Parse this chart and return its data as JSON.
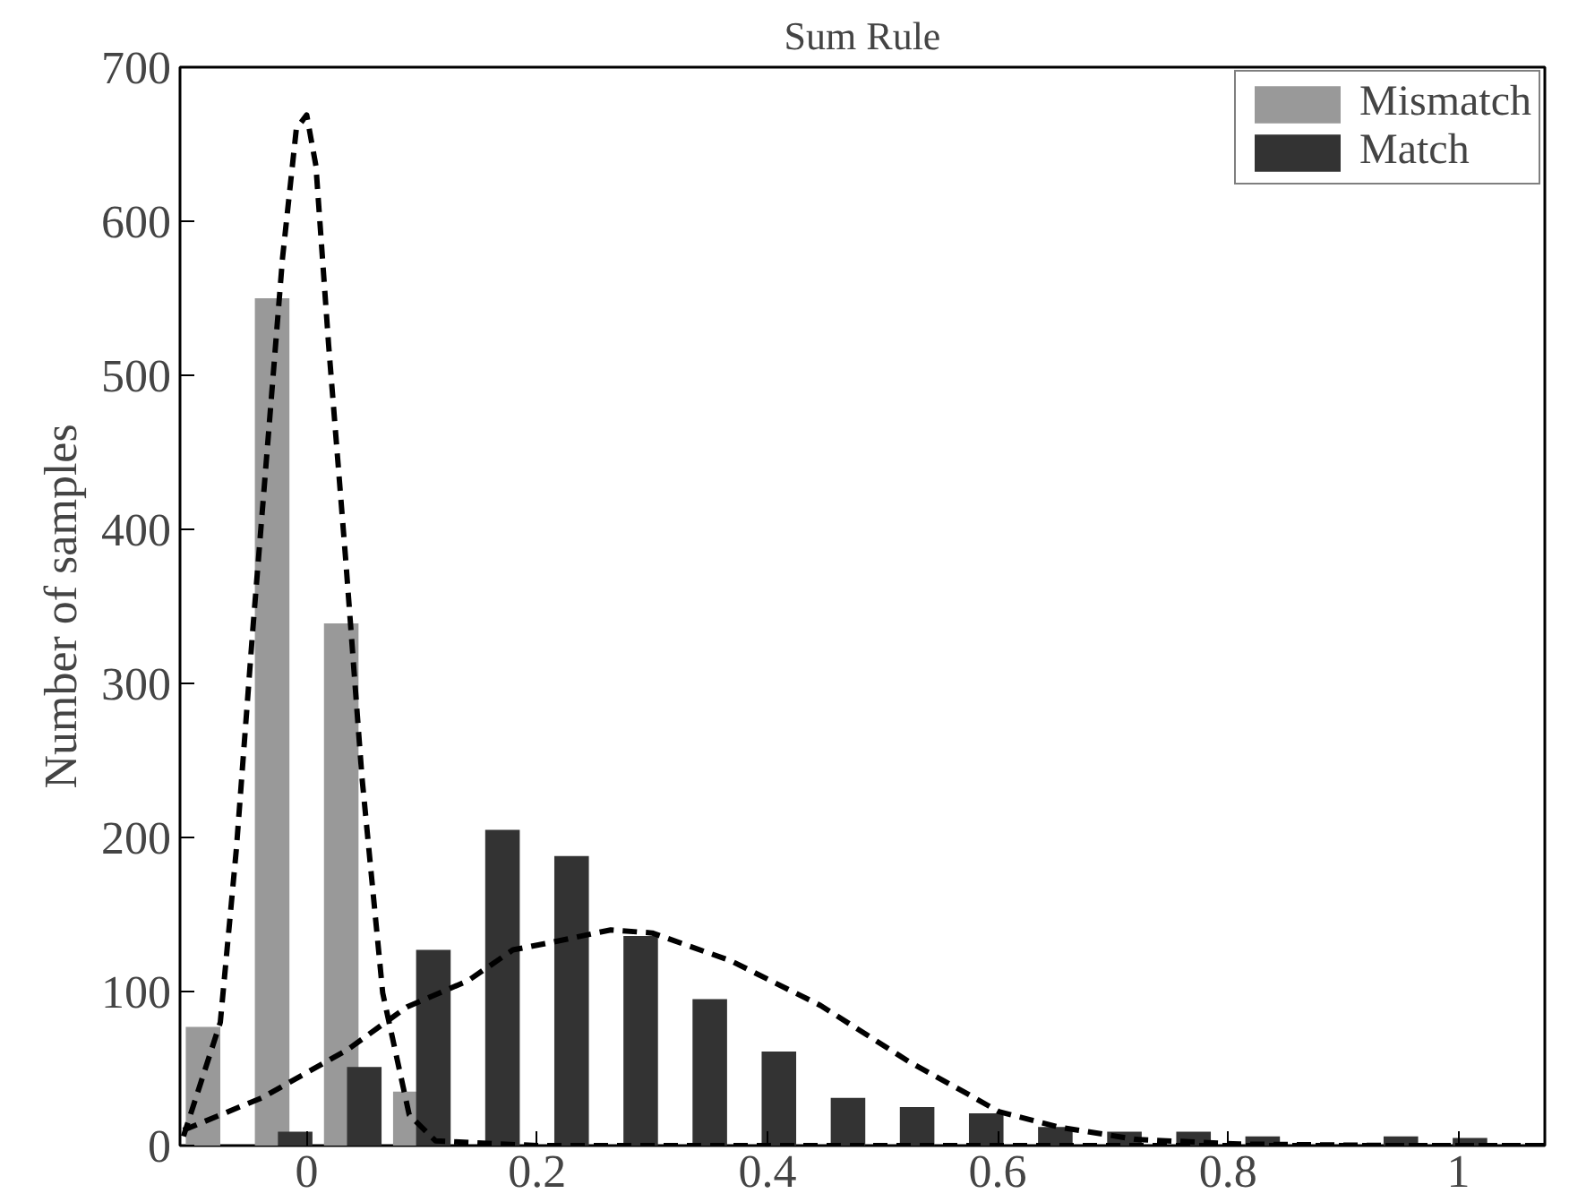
{
  "chart_data": {
    "type": "bar",
    "title": "Sum Rule",
    "ylabel": "Number of samples",
    "xlim": [
      -0.11,
      1.075
    ],
    "ylim": [
      0,
      700
    ],
    "xticks": [
      0,
      0.2,
      0.4,
      0.6,
      0.8,
      1
    ],
    "yticks": [
      0,
      100,
      200,
      300,
      400,
      500,
      600,
      700
    ],
    "grid": false,
    "legend": "top right",
    "series": [
      {
        "name": "Mismatch",
        "color": "#999999",
        "x": [
          -0.09,
          -0.03,
          0.03,
          0.09,
          0.15,
          0.21,
          0.27,
          0.33,
          0.39,
          0.45,
          0.51,
          0.57,
          0.63,
          0.69,
          0.75,
          0.81,
          0.87,
          0.93,
          0.99,
          1.05
        ],
        "values": [
          77,
          550,
          339,
          35,
          0,
          0,
          0,
          0,
          0,
          0,
          0,
          0,
          0,
          0,
          0,
          0,
          0,
          0,
          0,
          0
        ]
      },
      {
        "name": "Match",
        "color": "#333333",
        "x": [
          -0.07,
          -0.01,
          0.05,
          0.11,
          0.17,
          0.23,
          0.29,
          0.35,
          0.41,
          0.47,
          0.53,
          0.59,
          0.65,
          0.71,
          0.77,
          0.83,
          0.89,
          0.95,
          1.01
        ],
        "values": [
          0,
          9,
          51,
          127,
          205,
          188,
          136,
          95,
          61,
          31,
          25,
          21,
          12,
          9,
          9,
          6,
          null,
          6,
          5
        ]
      },
      {
        "type": "line",
        "color": "#000000",
        "line_style": "dashed",
        "x": [
          -0.107,
          -0.075,
          -0.061,
          -0.047,
          -0.032,
          -0.021,
          -0.009,
          0.0,
          0.008,
          0.019,
          0.034,
          0.048,
          0.066,
          0.089,
          0.112,
          0.2,
          0.4,
          0.6,
          0.8,
          1.0,
          1.075
        ],
        "values": [
          6,
          80,
          193,
          333,
          473,
          576,
          660,
          669,
          636,
          520,
          379,
          239,
          99,
          20,
          3,
          0,
          0,
          0,
          0,
          0,
          0
        ]
      },
      {
        "type": "line",
        "color": "#000000",
        "line_style": "dashed",
        "x": [
          -0.107,
          -0.039,
          0.035,
          0.087,
          0.14,
          0.179,
          0.213,
          0.264,
          0.3,
          0.368,
          0.446,
          0.524,
          0.575,
          0.601,
          0.653,
          0.72,
          0.81,
          0.95,
          1.075
        ],
        "values": [
          10,
          31,
          62,
          90,
          107,
          127,
          132,
          140,
          138,
          120,
          91,
          54,
          33,
          22,
          12,
          4,
          1,
          0,
          0
        ]
      }
    ]
  }
}
